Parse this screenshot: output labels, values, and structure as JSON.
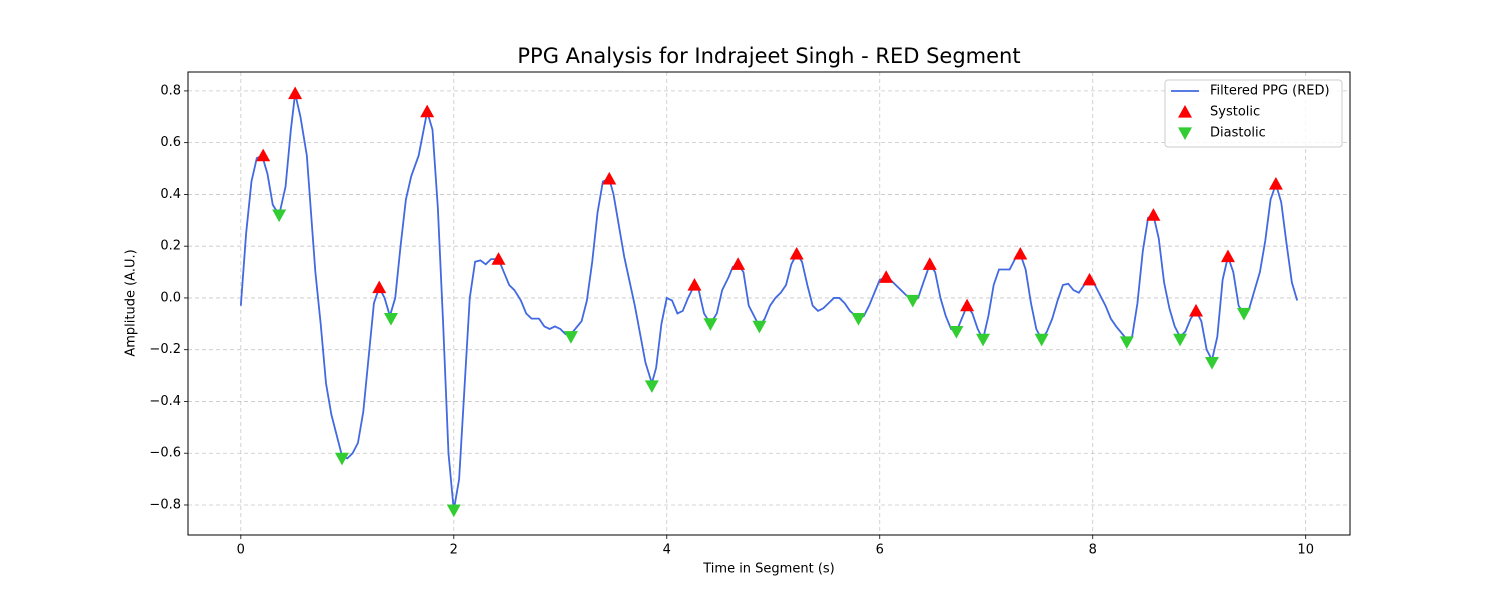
{
  "chart_data": {
    "type": "line",
    "title": "PPG Analysis for Indrajeet Singh - RED Segment",
    "x_label": "Time in Segment (s)",
    "y_label": "Amplitude (A.U.)",
    "xlim": [
      -0.496,
      10.416
    ],
    "ylim": [
      -0.916,
      0.873
    ],
    "xticks": [
      0,
      2,
      4,
      6,
      8,
      10
    ],
    "yticks": [
      {
        "value": -0.8,
        "label": "−0.8"
      },
      {
        "value": -0.6,
        "label": "−0.6"
      },
      {
        "value": -0.4,
        "label": "−0.4"
      },
      {
        "value": -0.2,
        "label": "−0.2"
      },
      {
        "value": 0,
        "label": "0.0"
      },
      0.2,
      0.4,
      0.6,
      0.8
    ],
    "grid": true,
    "legend": "upper right",
    "series": [
      {
        "name": "Filtered PPG (RED)",
        "type": "line",
        "color": "#4169e1",
        "x": [
          0,
          0.05,
          0.1,
          0.15,
          0.2,
          0.25,
          0.3,
          0.36,
          0.42,
          0.47,
          0.51,
          0.56,
          0.62,
          0.7,
          0.75,
          0.8,
          0.85,
          0.9,
          0.95,
          1.0,
          1.05,
          1.1,
          1.15,
          1.2,
          1.25,
          1.3,
          1.35,
          1.4,
          1.45,
          1.5,
          1.55,
          1.6,
          1.67,
          1.75,
          1.8,
          1.85,
          1.9,
          1.95,
          2.0,
          2.05,
          2.1,
          2.15,
          2.2,
          2.25,
          2.3,
          2.35,
          2.42,
          2.47,
          2.52,
          2.57,
          2.63,
          2.68,
          2.73,
          2.8,
          2.85,
          2.9,
          2.95,
          3.0,
          3.05,
          3.1,
          3.2,
          3.25,
          3.3,
          3.35,
          3.4,
          3.46,
          3.5,
          3.6,
          3.7,
          3.8,
          3.86,
          3.9,
          3.95,
          4.0,
          4.05,
          4.1,
          4.15,
          4.2,
          4.26,
          4.3,
          4.35,
          4.41,
          4.47,
          4.52,
          4.58,
          4.62,
          4.67,
          4.72,
          4.77,
          4.87,
          4.92,
          4.97,
          5.02,
          5.07,
          5.12,
          5.17,
          5.22,
          5.27,
          5.32,
          5.37,
          5.42,
          5.47,
          5.52,
          5.57,
          5.62,
          5.67,
          5.72,
          5.8,
          5.85,
          5.9,
          5.95,
          6.0,
          6.06,
          6.1,
          6.15,
          6.2,
          6.25,
          6.31,
          6.36,
          6.41,
          6.47,
          6.52,
          6.57,
          6.62,
          6.67,
          6.72,
          6.77,
          6.82,
          6.87,
          6.92,
          6.97,
          7.02,
          7.07,
          7.12,
          7.17,
          7.22,
          7.27,
          7.32,
          7.37,
          7.42,
          7.47,
          7.52,
          7.57,
          7.62,
          7.67,
          7.72,
          7.77,
          7.82,
          7.87,
          7.92,
          7.97,
          8.02,
          8.07,
          8.12,
          8.17,
          8.22,
          8.32,
          8.37,
          8.42,
          8.47,
          8.52,
          8.57,
          8.62,
          8.67,
          8.72,
          8.77,
          8.82,
          8.87,
          8.92,
          8.97,
          9.02,
          9.07,
          9.12,
          9.17,
          9.22,
          9.27,
          9.32,
          9.37,
          9.42,
          9.47,
          9.52,
          9.57,
          9.62,
          9.67,
          9.72,
          9.77,
          9.82,
          9.87,
          9.92
        ],
        "values": [
          -0.03,
          0.25,
          0.45,
          0.54,
          0.55,
          0.48,
          0.36,
          0.32,
          0.43,
          0.65,
          0.79,
          0.7,
          0.55,
          0.1,
          -0.1,
          -0.33,
          -0.45,
          -0.53,
          -0.61,
          -0.62,
          -0.6,
          -0.56,
          -0.44,
          -0.23,
          -0.02,
          0.04,
          0.0,
          -0.07,
          0.0,
          0.2,
          0.38,
          0.47,
          0.55,
          0.72,
          0.65,
          0.35,
          -0.1,
          -0.6,
          -0.82,
          -0.7,
          -0.35,
          0.0,
          0.14,
          0.145,
          0.13,
          0.15,
          0.15,
          0.1,
          0.05,
          0.03,
          -0.01,
          -0.06,
          -0.08,
          -0.08,
          -0.11,
          -0.12,
          -0.11,
          -0.12,
          -0.14,
          -0.14,
          -0.09,
          -0.01,
          0.14,
          0.33,
          0.45,
          0.46,
          0.4,
          0.16,
          -0.03,
          -0.25,
          -0.33,
          -0.27,
          -0.1,
          0.0,
          -0.01,
          -0.06,
          -0.05,
          0.0,
          0.05,
          0.03,
          -0.06,
          -0.1,
          -0.06,
          0.03,
          0.08,
          0.12,
          0.13,
          0.1,
          -0.03,
          -0.11,
          -0.08,
          -0.03,
          0.0,
          0.02,
          0.05,
          0.13,
          0.17,
          0.14,
          0.05,
          -0.03,
          -0.05,
          -0.04,
          -0.02,
          0.0,
          0.0,
          -0.02,
          -0.05,
          -0.08,
          -0.07,
          -0.03,
          0.02,
          0.07,
          0.08,
          0.07,
          0.05,
          0.03,
          0.01,
          -0.01,
          0.0,
          0.06,
          0.13,
          0.1,
          0.0,
          -0.07,
          -0.12,
          -0.13,
          -0.08,
          -0.03,
          -0.06,
          -0.12,
          -0.16,
          -0.07,
          0.05,
          0.11,
          0.11,
          0.11,
          0.15,
          0.17,
          0.11,
          -0.02,
          -0.12,
          -0.16,
          -0.13,
          -0.08,
          -0.01,
          0.05,
          0.055,
          0.03,
          0.02,
          0.05,
          0.07,
          0.05,
          0.01,
          -0.03,
          -0.08,
          -0.11,
          -0.16,
          -0.15,
          -0.02,
          0.18,
          0.31,
          0.32,
          0.23,
          0.06,
          -0.04,
          -0.11,
          -0.15,
          -0.13,
          -0.08,
          -0.05,
          -0.09,
          -0.2,
          -0.24,
          -0.15,
          0.07,
          0.16,
          0.1,
          -0.03,
          -0.06,
          -0.04,
          0.03,
          0.1,
          0.22,
          0.38,
          0.44,
          0.37,
          0.21,
          0.06,
          -0.01
        ]
      },
      {
        "name": "Systolic",
        "type": "scatter",
        "marker": "triangle-up",
        "color": "#ff0000",
        "x": [
          0.21,
          0.51,
          1.3,
          1.75,
          2.42,
          3.46,
          4.26,
          4.67,
          5.22,
          6.06,
          6.47,
          6.82,
          7.32,
          7.97,
          8.57,
          8.97,
          9.27,
          9.72
        ],
        "values": [
          0.55,
          0.79,
          0.04,
          0.72,
          0.15,
          0.46,
          0.05,
          0.13,
          0.17,
          0.08,
          0.13,
          -0.03,
          0.17,
          0.07,
          0.32,
          -0.05,
          0.16,
          0.44
        ]
      },
      {
        "name": "Diastolic",
        "type": "scatter",
        "marker": "triangle-down",
        "color": "#32cd32",
        "x": [
          0.36,
          0.95,
          1.41,
          2.0,
          3.1,
          3.86,
          4.41,
          4.87,
          5.8,
          6.31,
          6.72,
          6.97,
          7.52,
          8.32,
          8.82,
          9.12,
          9.42
        ],
        "values": [
          0.32,
          -0.62,
          -0.08,
          -0.82,
          -0.15,
          -0.34,
          -0.1,
          -0.11,
          -0.08,
          -0.01,
          -0.13,
          -0.16,
          -0.16,
          -0.17,
          -0.16,
          -0.25,
          -0.06
        ]
      }
    ]
  }
}
